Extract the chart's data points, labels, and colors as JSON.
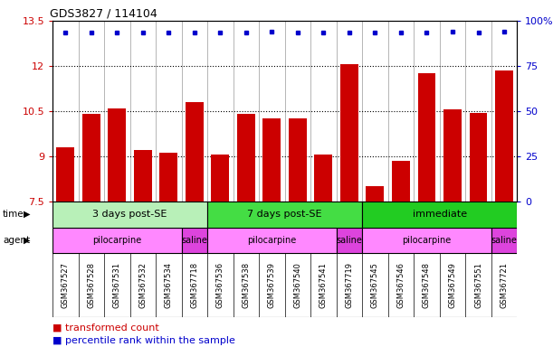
{
  "title": "GDS3827 / 114104",
  "samples": [
    "GSM367527",
    "GSM367528",
    "GSM367531",
    "GSM367532",
    "GSM367534",
    "GSM367718",
    "GSM367536",
    "GSM367538",
    "GSM367539",
    "GSM367540",
    "GSM367541",
    "GSM367719",
    "GSM367545",
    "GSM367546",
    "GSM367548",
    "GSM367549",
    "GSM367551",
    "GSM367721"
  ],
  "bar_values": [
    9.3,
    10.4,
    10.6,
    9.2,
    9.1,
    10.8,
    9.05,
    10.4,
    10.25,
    10.25,
    9.05,
    12.05,
    8.0,
    8.85,
    11.75,
    10.55,
    10.45,
    11.85
  ],
  "dot_values": [
    13.1,
    13.1,
    13.1,
    13.1,
    13.1,
    13.1,
    13.1,
    13.1,
    13.15,
    13.1,
    13.1,
    13.1,
    13.1,
    13.1,
    13.1,
    13.15,
    13.1,
    13.15
  ],
  "bar_color": "#cc0000",
  "dot_color": "#0000cc",
  "ylim_left": [
    7.5,
    13.5
  ],
  "ylim_right": [
    0,
    100
  ],
  "yticks_left": [
    7.5,
    9.0,
    10.5,
    12.0,
    13.5
  ],
  "ytick_labels_left": [
    "7.5",
    "9",
    "10.5",
    "12",
    "13.5"
  ],
  "yticks_right": [
    0,
    25,
    50,
    75,
    100
  ],
  "ytick_labels_right": [
    "0",
    "25",
    "50",
    "75",
    "100%"
  ],
  "hlines": [
    9.0,
    10.5,
    12.0
  ],
  "time_groups": [
    {
      "label": "3 days post-SE",
      "start": 0,
      "end": 5,
      "color": "#b8f0b8"
    },
    {
      "label": "7 days post-SE",
      "start": 6,
      "end": 11,
      "color": "#44dd44"
    },
    {
      "label": "immediate",
      "start": 12,
      "end": 17,
      "color": "#22cc22"
    }
  ],
  "agent_groups": [
    {
      "label": "pilocarpine",
      "start": 0,
      "end": 4,
      "color": "#ff88ff"
    },
    {
      "label": "saline",
      "start": 5,
      "end": 5,
      "color": "#dd44dd"
    },
    {
      "label": "pilocarpine",
      "start": 6,
      "end": 10,
      "color": "#ff88ff"
    },
    {
      "label": "saline",
      "start": 11,
      "end": 11,
      "color": "#dd44dd"
    },
    {
      "label": "pilocarpine",
      "start": 12,
      "end": 16,
      "color": "#ff88ff"
    },
    {
      "label": "saline",
      "start": 17,
      "end": 17,
      "color": "#dd44dd"
    }
  ],
  "background_color": "#ffffff",
  "tick_bg_color": "#d8d8d8",
  "bar_width": 0.7
}
